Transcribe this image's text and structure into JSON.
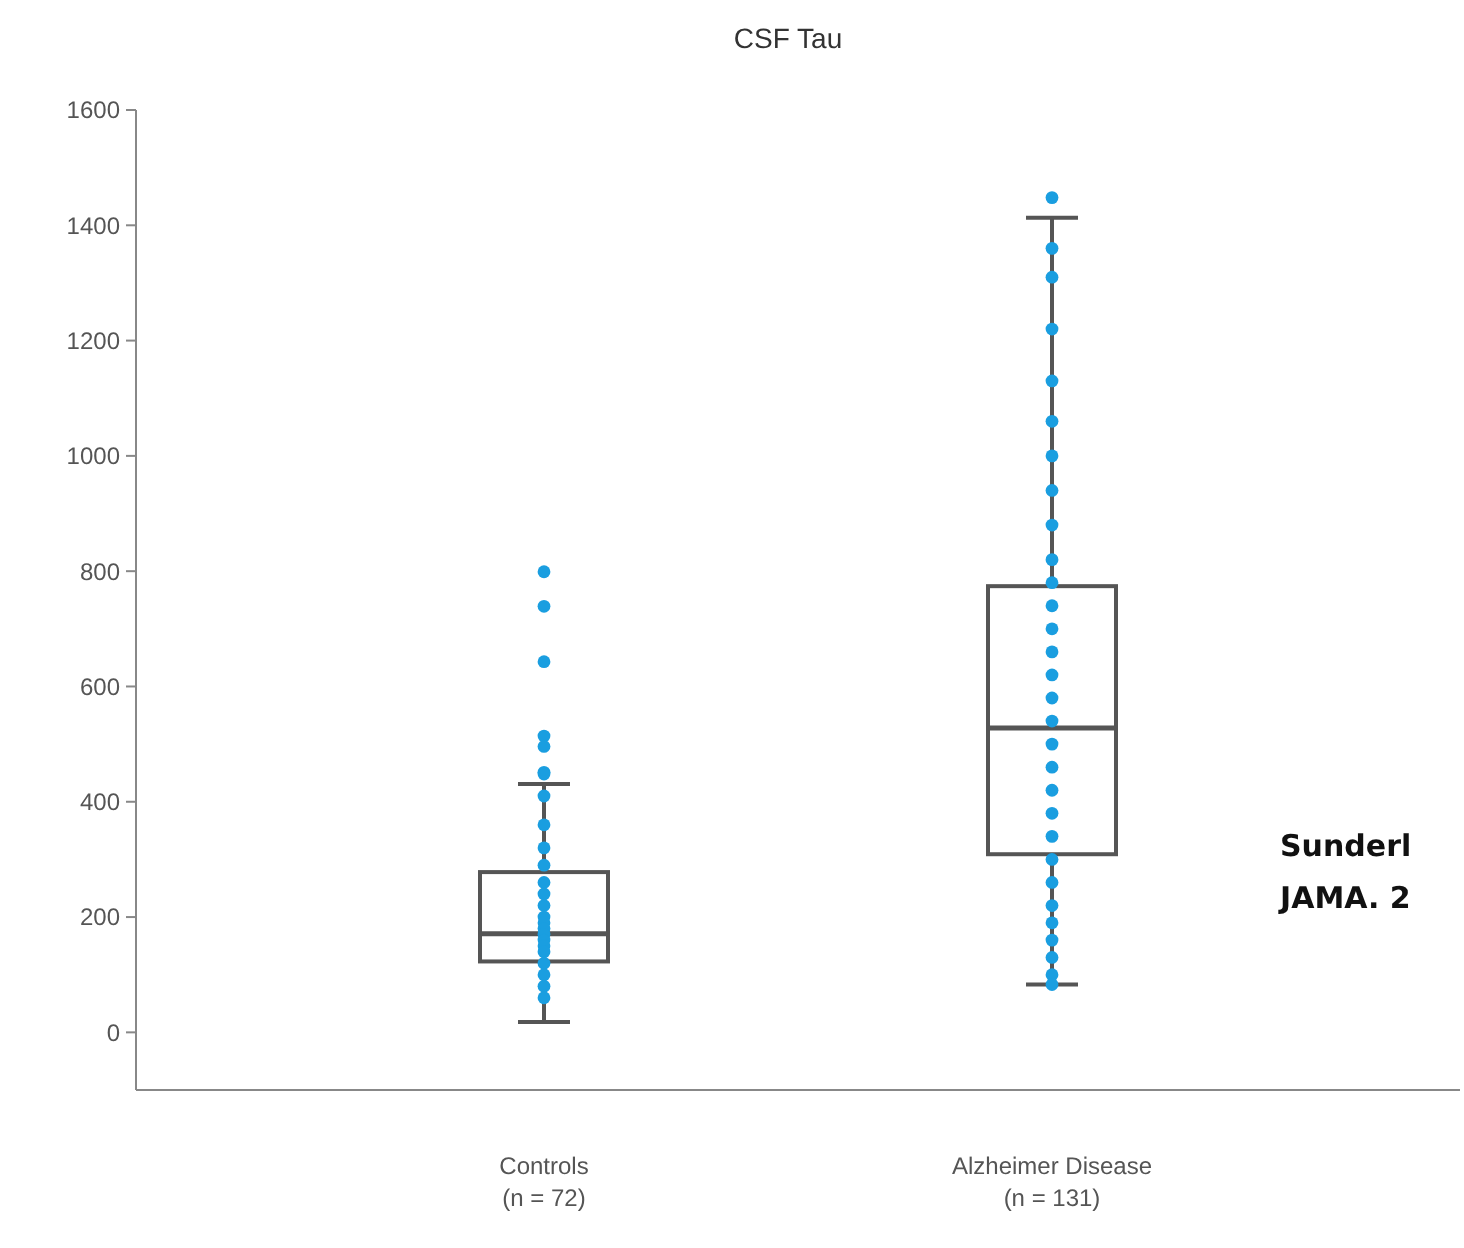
{
  "chart_data": {
    "type": "box",
    "title": "CSF Tau",
    "categories": [
      "Controls\n(n = 72)",
      "Alzheimer Disease\n(n = 131)"
    ],
    "boxes": [
      {
        "low": 18,
        "q1": 123,
        "median": 171,
        "q3": 278,
        "high": 431
      },
      {
        "low": 83,
        "q1": 309,
        "median": 528,
        "q3": 774,
        "high": 1413
      }
    ],
    "color": "#555555",
    "ylim": [
      -100,
      1600
    ],
    "yticks": [
      0,
      200,
      400,
      600,
      800,
      1000,
      1200,
      1400,
      1600
    ],
    "grid": false,
    "series": [
      {
        "type": "scatter",
        "color": "#1a9ee0",
        "marker": "circle",
        "x": [
          "Controls\n(n = 72)",
          "Controls\n(n = 72)",
          "Controls\n(n = 72)",
          "Controls\n(n = 72)",
          "Controls\n(n = 72)",
          "Controls\n(n = 72)",
          "Controls\n(n = 72)",
          "Controls\n(n = 72)",
          "Controls\n(n = 72)",
          "Controls\n(n = 72)",
          "Controls\n(n = 72)",
          "Controls\n(n = 72)",
          "Controls\n(n = 72)",
          "Controls\n(n = 72)",
          "Controls\n(n = 72)",
          "Controls\n(n = 72)",
          "Controls\n(n = 72)",
          "Controls\n(n = 72)",
          "Controls\n(n = 72)",
          "Controls\n(n = 72)",
          "Controls\n(n = 72)",
          "Controls\n(n = 72)",
          "Controls\n(n = 72)",
          "Controls\n(n = 72)",
          "Controls\n(n = 72)",
          "Controls\n(n = 72)"
        ],
        "values": [
          799,
          739,
          null,
          643,
          514,
          496,
          451,
          448,
          410,
          360,
          320,
          290,
          260,
          240,
          220,
          200,
          190,
          180,
          170,
          160,
          150,
          140,
          120,
          100,
          80,
          60
        ]
      },
      {
        "type": "scatter",
        "color": "#1a9ee0",
        "marker": "circle",
        "x": [
          "Alzheimer Disease\n(n = 131)",
          "Alzheimer Disease\n(n = 131)",
          "Alzheimer Disease\n(n = 131)",
          "Alzheimer Disease\n(n = 131)",
          "Alzheimer Disease\n(n = 131)",
          "Alzheimer Disease\n(n = 131)",
          "Alzheimer Disease\n(n = 131)",
          "Alzheimer Disease\n(n = 131)",
          "Alzheimer Disease\n(n = 131)",
          "Alzheimer Disease\n(n = 131)",
          "Alzheimer Disease\n(n = 131)",
          "Alzheimer Disease\n(n = 131)",
          "Alzheimer Disease\n(n = 131)",
          "Alzheimer Disease\n(n = 131)",
          "Alzheimer Disease\n(n = 131)",
          "Alzheimer Disease\n(n = 131)",
          "Alzheimer Disease\n(n = 131)",
          "Alzheimer Disease\n(n = 131)",
          "Alzheimer Disease\n(n = 131)",
          "Alzheimer Disease\n(n = 131)",
          "Alzheimer Disease\n(n = 131)",
          "Alzheimer Disease\n(n = 131)",
          "Alzheimer Disease\n(n = 131)",
          "Alzheimer Disease\n(n = 131)",
          "Alzheimer Disease\n(n = 131)",
          "Alzheimer Disease\n(n = 131)",
          "Alzheimer Disease\n(n = 131)",
          "Alzheimer Disease\n(n = 131)",
          "Alzheimer Disease\n(n = 131)",
          "Alzheimer Disease\n(n = 131)"
        ],
        "values": [
          1448,
          1360,
          1310,
          1220,
          1130,
          1060,
          1000,
          940,
          880,
          820,
          780,
          740,
          700,
          660,
          620,
          580,
          540,
          500,
          460,
          420,
          380,
          340,
          300,
          260,
          220,
          190,
          160,
          130,
          100,
          83
        ]
      }
    ],
    "annotations": [
      "Sunderl",
      "JAMA. 2"
    ]
  }
}
